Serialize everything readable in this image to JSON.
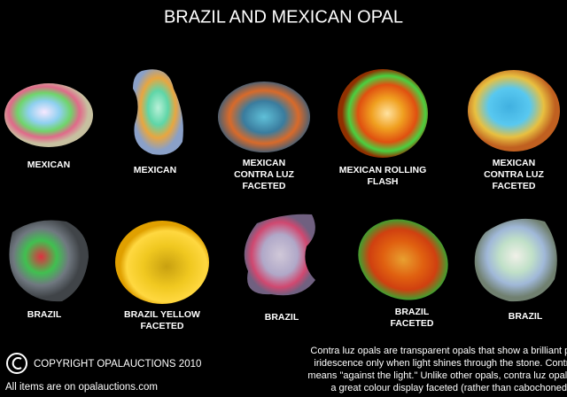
{
  "title": "BRAZIL AND MEXICAN OPAL",
  "items": [
    {
      "label": [
        "MEXICAN"
      ]
    },
    {
      "label": [
        "MEXICAN"
      ]
    },
    {
      "label": [
        "MEXICAN",
        "CONTRA LUZ",
        "FACETED"
      ]
    },
    {
      "label": [
        "MEXICAN ROLLING",
        "FLASH"
      ]
    },
    {
      "label": [
        "MEXICAN",
        "CONTRA LUZ",
        "FACETED"
      ]
    },
    {
      "label": [
        "BRAZIL"
      ]
    },
    {
      "label": [
        "BRAZIL YELLOW",
        "FACETED"
      ]
    },
    {
      "label": [
        "BRAZIL"
      ]
    },
    {
      "label": [
        "BRAZIL",
        "FACETED"
      ]
    },
    {
      "label": [
        "BRAZIL"
      ]
    }
  ],
  "copyright": "COPYRIGHT OPALAUCTIONS 2010",
  "footer": "All items are on opalauctions.com",
  "note": [
    "Contra luz  opals are transparent opals that show a brilliant play of",
    "iridescence only when light shines through the stone. Contra luz",
    "means \"against the light.\" Unlike other opals, contra luz opals have",
    "a great colour display faceted (rather than cabochoned)."
  ]
}
